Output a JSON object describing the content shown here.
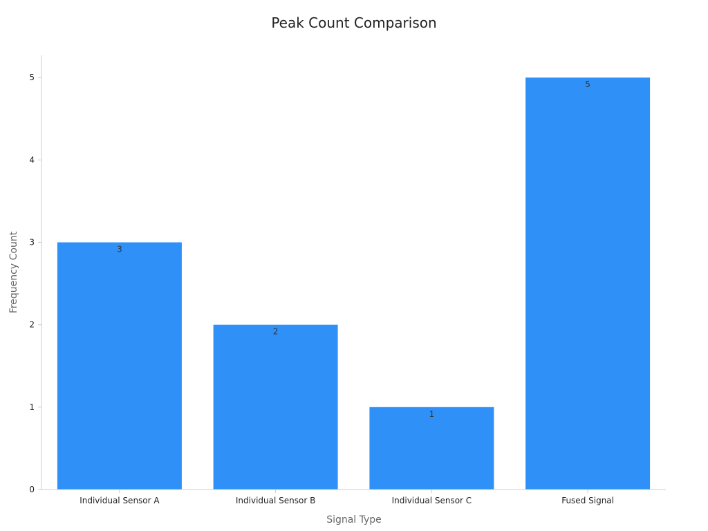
{
  "chart_data": {
    "type": "bar",
    "title": "Peak Count Comparison",
    "xlabel": "Signal Type",
    "ylabel": "Frequency Count",
    "categories": [
      "Individual Sensor A",
      "Individual Sensor B",
      "Individual Sensor C",
      "Fused Signal"
    ],
    "values": [
      3,
      2,
      1,
      5
    ],
    "data_labels": [
      "3",
      "2",
      "1",
      "5"
    ],
    "yticks": [
      0,
      1,
      2,
      3,
      4,
      5
    ],
    "ylim": [
      0,
      5.27
    ],
    "grid": false,
    "legend": "none",
    "colors": {
      "bar": "#2f91f7",
      "axis": "#cccccc",
      "title": "#222222",
      "axis_label": "#666666"
    }
  }
}
